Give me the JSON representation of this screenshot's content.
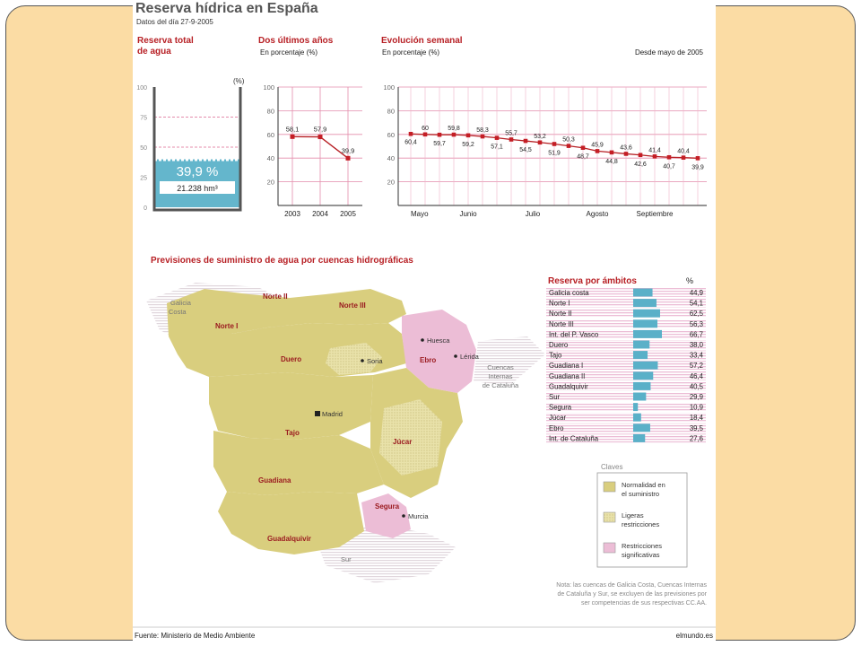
{
  "header": {
    "title": "Reserva hídrica en España",
    "date": "Datos del día 27-9-2005"
  },
  "colors": {
    "title": "#555555",
    "accent": "#b71f24",
    "water": "#64b6cc",
    "bar": "#5ab0c8",
    "normal": "#d8cc7a",
    "light": "#e7e0a6",
    "severe": "#ecbdd6"
  },
  "chart_data": [
    {
      "type": "gauge",
      "title": "Reserva total de agua",
      "title_lines": [
        "Reserva total",
        "de agua"
      ],
      "unit": "(%)",
      "ticks": [
        100,
        75,
        50,
        25,
        0
      ],
      "ylim": [
        0,
        100
      ],
      "value": 39.9,
      "value_label": "39,9 %",
      "volume_label": "21.238 hm³"
    },
    {
      "type": "line",
      "title": "Dos últimos años",
      "subtitle": "En porcentaje (%)",
      "ylim": [
        0,
        100
      ],
      "yticks": [
        100,
        80,
        60,
        40,
        20
      ],
      "categories": [
        "2003",
        "2004",
        "2005"
      ],
      "values": [
        58.1,
        57.9,
        39.9
      ],
      "labels": [
        "58,1",
        "57,9",
        "39,9"
      ]
    },
    {
      "type": "line",
      "title": "Evolución semanal",
      "subtitle": "En porcentaje (%)",
      "note": "Desde mayo de 2005",
      "ylim": [
        0,
        100
      ],
      "yticks": [
        100,
        80,
        60,
        40,
        20
      ],
      "month_labels": [
        "Mayo",
        "Junio",
        "Julio",
        "Agosto",
        "Septiembre"
      ],
      "month_positions": [
        0,
        4,
        8.5,
        13,
        17
      ],
      "values": [
        60.4,
        60,
        59.7,
        59.8,
        59.2,
        58.3,
        57.1,
        55.7,
        54.5,
        53.2,
        51.9,
        50.3,
        48.7,
        45.9,
        44.8,
        43.6,
        42.6,
        41.4,
        40.7,
        40.4,
        39.9
      ],
      "labels": [
        "60,4",
        "60",
        "59,7",
        "59,8",
        "59,2",
        "58,3",
        "57,1",
        "55,7",
        "54,5",
        "53,2",
        "51,9",
        "50,3",
        "48,7",
        "45,9",
        "44,8",
        "43,6",
        "42,6",
        "41,4",
        "40,7",
        "40,4",
        "39,9"
      ]
    },
    {
      "type": "bar",
      "title": "Reserva por ámbitos",
      "unit": "%",
      "categories": [
        "Galicia costa",
        "Norte I",
        "Norte II",
        "Norte III",
        "Int. del P. Vasco",
        "Duero",
        "Tajo",
        "Guadiana I",
        "Guadiana II",
        "Guadalquivir",
        "Sur",
        "Segura",
        "Júcar",
        "Ebro",
        "Int. de Cataluña"
      ],
      "values": [
        44.9,
        54.1,
        62.5,
        56.3,
        66.7,
        38.0,
        33.4,
        57.2,
        46.4,
        40.5,
        29.9,
        10.9,
        18.4,
        39.5,
        27.6
      ],
      "labels": [
        "44,9",
        "54,1",
        "62,5",
        "56,3",
        "66,7",
        "38,0",
        "33,4",
        "57,2",
        "46,4",
        "40,5",
        "29,9",
        "10,9",
        "18,4",
        "39,5",
        "27,6"
      ]
    }
  ],
  "map": {
    "title": "Previsiones  de suministro de agua por cuencas hidrográficas",
    "basin_labels": [
      "Norte II",
      "Norte III",
      "Norte I",
      "Duero",
      "Ebro",
      "Tajo",
      "Júcar",
      "Guadiana",
      "Segura",
      "Guadalquivir"
    ],
    "grey_labels": [
      "Galicia",
      "Costa",
      "Sur",
      "Cuencas",
      "Internas",
      "de Cataluña"
    ],
    "cities": [
      "Huesca",
      "Lérida",
      "Soria",
      "Madrid",
      "Murcia"
    ]
  },
  "legend": {
    "title": "Claves",
    "items": [
      {
        "lines": [
          "Normalidad en",
          "el suministro"
        ]
      },
      {
        "lines": [
          "Ligeras",
          "restricciones"
        ]
      },
      {
        "lines": [
          "Restricciones",
          "significativas"
        ]
      }
    ]
  },
  "note_lines": [
    "Nota: las cuencas de Galicia Costa, Cuencas Internas",
    "de Cataluña y Sur, se excluyen de las previsiones por",
    "ser competencias de sus respectivas CC.AA."
  ],
  "footer": {
    "source": "Fuente: Ministerio de Medio Ambiente",
    "site": "elmundo.es"
  }
}
